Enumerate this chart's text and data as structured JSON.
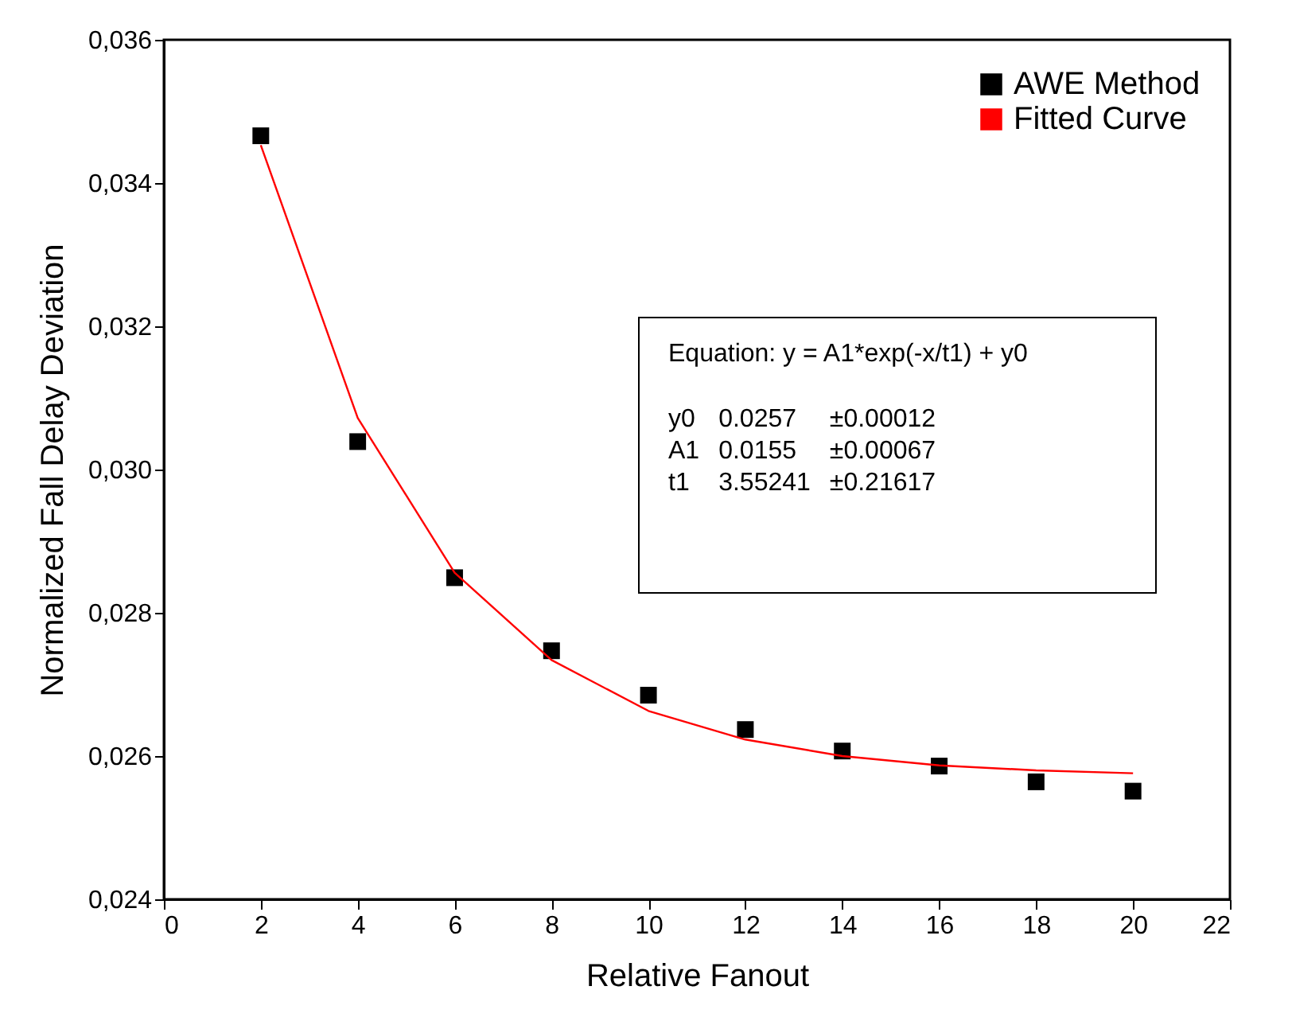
{
  "chart_data": {
    "type": "scatter",
    "xlabel": "Relative Fanout",
    "ylabel": "Normalized Fall Delay Deviation",
    "xlim": [
      0,
      22
    ],
    "xticks": [
      0,
      2,
      4,
      6,
      8,
      10,
      12,
      14,
      16,
      18,
      20,
      22
    ],
    "ylim": [
      0.024,
      0.036
    ],
    "yticks": [
      {
        "value": 0.024,
        "label": "0,024"
      },
      {
        "value": 0.026,
        "label": "0,026"
      },
      {
        "value": 0.028,
        "label": "0,028"
      },
      {
        "value": 0.03,
        "label": "0,030"
      },
      {
        "value": 0.032,
        "label": "0,032"
      },
      {
        "value": 0.034,
        "label": "0,034"
      },
      {
        "value": 0.036,
        "label": "0,036"
      }
    ],
    "series": [
      {
        "name": "AWE Method",
        "color": "#000000",
        "marker": "square",
        "x": [
          2,
          4,
          6,
          8,
          10,
          12,
          14,
          16,
          18,
          20
        ],
        "values": [
          0.03466,
          0.03039,
          0.02849,
          0.02747,
          0.02685,
          0.02637,
          0.02607,
          0.02586,
          0.02564,
          0.02551
        ]
      },
      {
        "name": "Fitted Curve",
        "type": "line",
        "color": "#ff0000",
        "x": [
          2,
          4,
          6,
          8,
          10,
          12,
          14,
          16,
          18,
          20
        ],
        "values": [
          0.03453,
          0.03072,
          0.02856,
          0.02734,
          0.02663,
          0.02623,
          0.026,
          0.02587,
          0.0258,
          0.02576
        ]
      }
    ],
    "legend": "top right",
    "grid": false,
    "annotations": [
      "Equation: y = A1*exp(-x/t1) + y0",
      "y0 0.0257 ±0.00012",
      "A1 0.0155 ±0.00067",
      "t1 3.55241 ±0.21617"
    ]
  }
}
